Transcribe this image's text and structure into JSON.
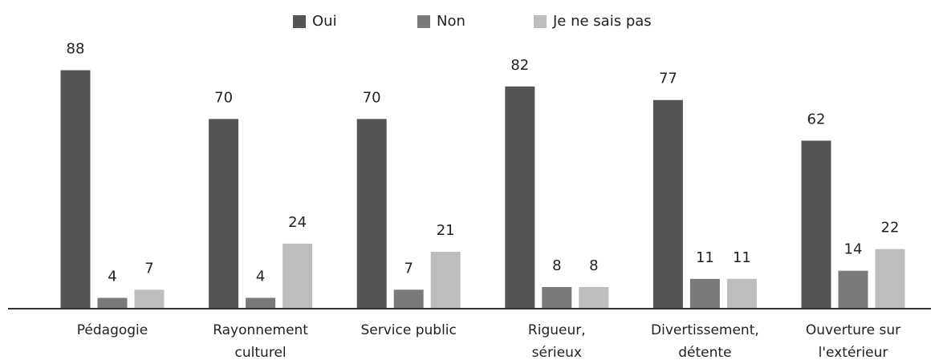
{
  "chart_data": {
    "type": "bar",
    "categories": [
      "Pédagogie",
      "Rayonnement\nculturel",
      "Service public",
      "Rigueur,\nsérieux",
      "Divertissement,\ndétente",
      "Ouverture sur\nl'extérieur"
    ],
    "series": [
      {
        "name": "Oui",
        "color": "#555555",
        "values": [
          88,
          70,
          70,
          82,
          77,
          62
        ]
      },
      {
        "name": "Non",
        "color": "#7a7a7a",
        "values": [
          4,
          4,
          7,
          8,
          11,
          14
        ]
      },
      {
        "name": "Je ne sais pas",
        "color": "#bdbdbd",
        "values": [
          7,
          24,
          21,
          8,
          11,
          22
        ]
      }
    ],
    "legend": "top"
  }
}
